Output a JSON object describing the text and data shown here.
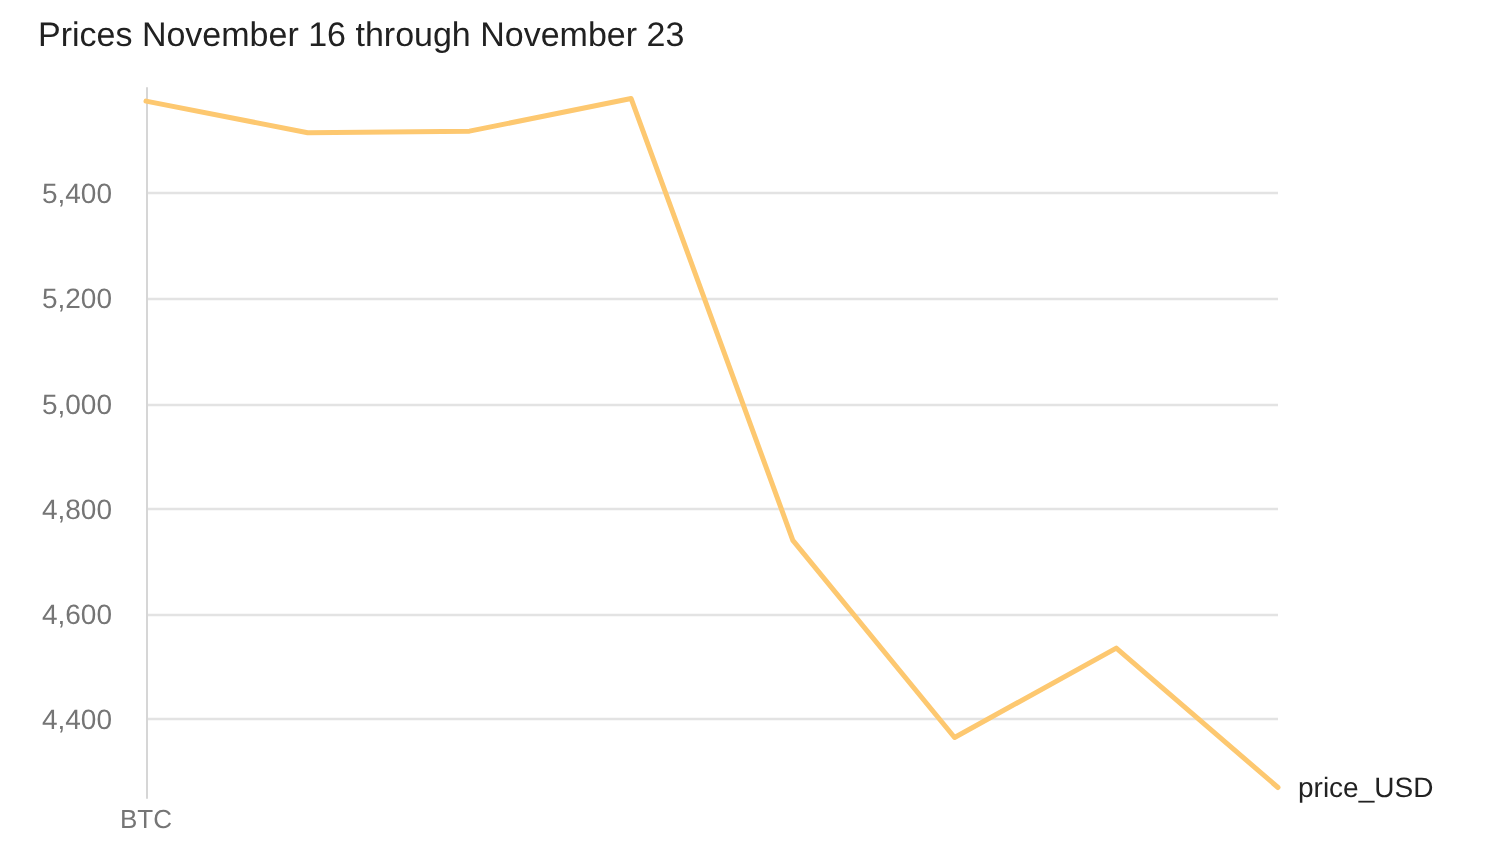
{
  "chart_data": {
    "type": "line",
    "title": "Prices November 16 through November 23",
    "categories": [
      "BTC",
      null,
      null,
      null,
      null,
      null,
      null,
      null
    ],
    "series": [
      {
        "name": "price_USD",
        "color": "#fdc870",
        "values": [
          5575,
          5515,
          5518,
          5580,
          4740,
          4365,
          4535,
          4270
        ]
      }
    ],
    "ylim": [
      4250,
      5600
    ],
    "yticks": [
      {
        "value": 4400,
        "label": "4,400"
      },
      {
        "value": 4600,
        "label": "4,600"
      },
      {
        "value": 4800,
        "label": "4,800"
      },
      {
        "value": 5000,
        "label": "5,000"
      },
      {
        "value": 5200,
        "label": "5,200"
      },
      {
        "value": 5400,
        "label": "5,400"
      }
    ],
    "grid": "y",
    "legend": false,
    "marker": "none",
    "line_style": "solid"
  }
}
